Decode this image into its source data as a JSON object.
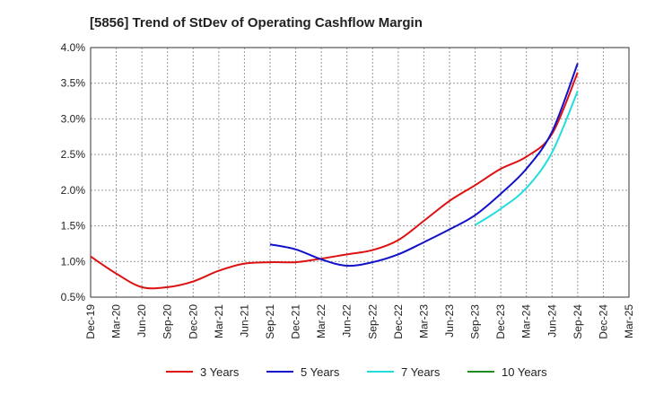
{
  "chart_data": {
    "type": "line",
    "title": "[5856]  Trend of StDev of Operating Cashflow Margin",
    "xlabel": "",
    "ylabel": "",
    "ylim": [
      0.5,
      4.0
    ],
    "ytick_values": [
      0.5,
      1.0,
      1.5,
      2.0,
      2.5,
      3.0,
      3.5,
      4.0
    ],
    "ytick_labels": [
      "0.5%",
      "1.0%",
      "1.5%",
      "2.0%",
      "2.5%",
      "3.0%",
      "3.5%",
      "4.0%"
    ],
    "x_categories": [
      "Dec-19",
      "Mar-20",
      "Jun-20",
      "Sep-20",
      "Dec-20",
      "Mar-21",
      "Jun-21",
      "Sep-21",
      "Dec-21",
      "Mar-22",
      "Jun-22",
      "Sep-22",
      "Dec-22",
      "Mar-23",
      "Jun-23",
      "Sep-23",
      "Dec-23",
      "Mar-24",
      "Jun-24",
      "Sep-24",
      "Dec-24",
      "Mar-25"
    ],
    "grid": true,
    "legend_position": "bottom",
    "series": [
      {
        "name": "3 Years",
        "color": "#dd1111",
        "values": [
          1.07,
          0.83,
          0.64,
          0.64,
          0.72,
          0.87,
          0.97,
          0.99,
          0.99,
          1.04,
          1.1,
          1.16,
          1.3,
          1.57,
          1.85,
          2.07,
          2.3,
          2.47,
          2.79,
          3.65,
          null,
          null
        ]
      },
      {
        "name": "5 Years",
        "color": "#1111cc",
        "values": [
          null,
          null,
          null,
          null,
          null,
          null,
          null,
          1.24,
          1.17,
          1.03,
          0.94,
          0.99,
          1.1,
          1.27,
          1.45,
          1.65,
          1.95,
          2.3,
          2.82,
          3.78,
          null,
          null
        ]
      },
      {
        "name": "7 Years",
        "color": "#22dddd",
        "values": [
          null,
          null,
          null,
          null,
          null,
          null,
          null,
          null,
          null,
          null,
          null,
          null,
          null,
          null,
          null,
          1.51,
          1.74,
          2.03,
          2.53,
          3.39,
          null,
          null
        ]
      },
      {
        "name": "10 Years",
        "color": "#228822",
        "values": [
          null,
          null,
          null,
          null,
          null,
          null,
          null,
          null,
          null,
          null,
          null,
          null,
          null,
          null,
          null,
          null,
          null,
          null,
          null,
          null,
          null,
          null
        ]
      }
    ]
  }
}
